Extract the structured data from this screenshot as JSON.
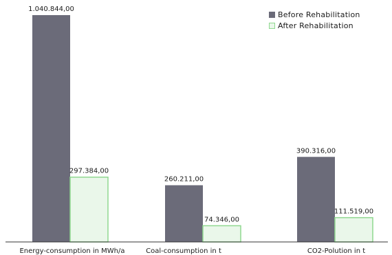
{
  "chart_data": {
    "type": "bar",
    "categories": [
      "Energy-consumption in MWh/a",
      "Coal-consumption in t",
      "CO2-Polution in t"
    ],
    "series": [
      {
        "name": "Before Rehabilitation",
        "values": [
          1040844,
          260211,
          390316
        ],
        "labels": [
          "1.040.844,00",
          "260.211,00",
          "390.316,00"
        ]
      },
      {
        "name": "After Rehabilitation",
        "values": [
          297384,
          74346,
          111519
        ],
        "labels": [
          "297.384,00",
          "74.346,00",
          "111.519,00"
        ]
      }
    ],
    "ylim": [
      0,
      1040844
    ],
    "grid": false,
    "legend_position": "top-right",
    "colors": {
      "before_fill": "#6b6b79",
      "after_fill": "#eaf7ea",
      "after_stroke": "#8fd88f",
      "axis": "#333333"
    }
  }
}
